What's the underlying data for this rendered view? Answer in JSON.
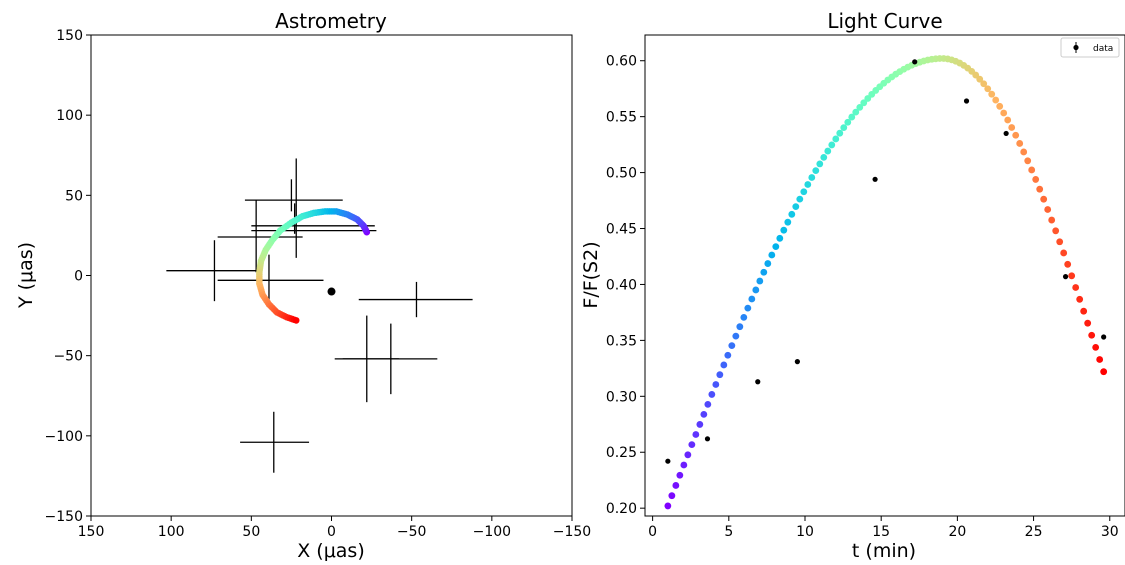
{
  "chart_data": [
    {
      "type": "scatter",
      "title": "Astrometry",
      "xlabel": "X (μas)",
      "ylabel": "Y (μas)",
      "xlim": [
        150,
        -150
      ],
      "ylim": [
        -150,
        150
      ],
      "x_ticks": [
        150,
        100,
        50,
        0,
        -50,
        -100,
        -150
      ],
      "y_ticks": [
        150,
        100,
        50,
        0,
        -50,
        -100,
        -150
      ],
      "x_tick_labels": [
        "150",
        "100",
        "50",
        "0",
        "−50",
        "−100",
        "−150"
      ],
      "y_tick_labels": [
        "150",
        "100",
        "50",
        "0",
        "−50",
        "−100",
        "−150"
      ],
      "grid": false,
      "center_point": {
        "x": 0,
        "y": -10,
        "color": "#000000"
      },
      "model_track": {
        "colormap": "rainbow",
        "points": [
          {
            "x": -22,
            "y": 27
          },
          {
            "x": -20,
            "y": 31
          },
          {
            "x": -16,
            "y": 35
          },
          {
            "x": -10,
            "y": 38
          },
          {
            "x": -3,
            "y": 40
          },
          {
            "x": 4,
            "y": 40
          },
          {
            "x": 11,
            "y": 39
          },
          {
            "x": 18,
            "y": 37
          },
          {
            "x": 25,
            "y": 33
          },
          {
            "x": 32,
            "y": 28
          },
          {
            "x": 37,
            "y": 22
          },
          {
            "x": 41,
            "y": 16
          },
          {
            "x": 44,
            "y": 9
          },
          {
            "x": 45,
            "y": 2
          },
          {
            "x": 45,
            "y": -5
          },
          {
            "x": 43,
            "y": -12
          },
          {
            "x": 39,
            "y": -18
          },
          {
            "x": 34,
            "y": -23
          },
          {
            "x": 28,
            "y": -26
          },
          {
            "x": 22,
            "y": -28
          }
        ]
      },
      "data_points": [
        {
          "x": 22,
          "y": 28,
          "xerr": [
            28,
            50
          ],
          "yerr": [
            17,
            45
          ]
        },
        {
          "x": 25,
          "y": 47,
          "xerr": [
            29,
            32
          ],
          "yerr": [
            7,
            13
          ]
        },
        {
          "x": 23,
          "y": 31,
          "xerr": [
            27,
            50
          ],
          "yerr": [
            5,
            14
          ]
        },
        {
          "x": 39,
          "y": -3,
          "xerr": [
            32,
            34
          ],
          "yerr": [
            16,
            16
          ]
        },
        {
          "x": 47,
          "y": 24,
          "xerr": [
            24,
            29
          ],
          "yerr": [
            22,
            23
          ]
        },
        {
          "x": 73,
          "y": 3,
          "xerr": [
            30,
            27
          ],
          "yerr": [
            19,
            19
          ]
        },
        {
          "x": -53,
          "y": -15,
          "xerr": [
            36,
            35
          ],
          "yerr": [
            11,
            11
          ]
        },
        {
          "x": -37,
          "y": -52,
          "xerr": [
            30,
            29
          ],
          "yerr": [
            22,
            22
          ]
        },
        {
          "x": -22,
          "y": -52,
          "xerr": [
            20,
            20
          ],
          "yerr": [
            27,
            27
          ]
        },
        {
          "x": 36,
          "y": -104,
          "xerr": [
            21,
            22
          ],
          "yerr": [
            19,
            19
          ]
        }
      ]
    },
    {
      "type": "scatter",
      "title": "Light Curve",
      "xlabel": "t (min)",
      "ylabel": "F/F(S2)",
      "xlim": [
        -0.5,
        31
      ],
      "ylim": [
        0.193,
        0.623
      ],
      "x_ticks": [
        0,
        5,
        10,
        15,
        20,
        25,
        30
      ],
      "y_ticks": [
        0.2,
        0.25,
        0.3,
        0.35,
        0.4,
        0.45,
        0.5,
        0.55,
        0.6
      ],
      "x_tick_labels": [
        "0",
        "5",
        "10",
        "15",
        "20",
        "25",
        "30"
      ],
      "y_tick_labels": [
        "0.20",
        "0.25",
        "0.30",
        "0.35",
        "0.40",
        "0.45",
        "0.50",
        "0.55",
        "0.60"
      ],
      "grid": false,
      "legend": {
        "position": "upper right",
        "entries": [
          "data"
        ]
      },
      "model_curve": {
        "colormap": "rainbow",
        "t_start": 1.0,
        "t_end": 29.6,
        "t_peak": 19.0,
        "f_start": 0.202,
        "f_peak": 0.602,
        "f_end": 0.322
      },
      "data_points": [
        {
          "t": 1.0,
          "f": 0.242
        },
        {
          "t": 3.6,
          "f": 0.262
        },
        {
          "t": 6.9,
          "f": 0.313
        },
        {
          "t": 9.5,
          "f": 0.331
        },
        {
          "t": 14.6,
          "f": 0.494
        },
        {
          "t": 17.2,
          "f": 0.599
        },
        {
          "t": 20.6,
          "f": 0.564
        },
        {
          "t": 23.2,
          "f": 0.535
        },
        {
          "t": 27.1,
          "f": 0.407
        },
        {
          "t": 29.6,
          "f": 0.353
        }
      ]
    }
  ]
}
